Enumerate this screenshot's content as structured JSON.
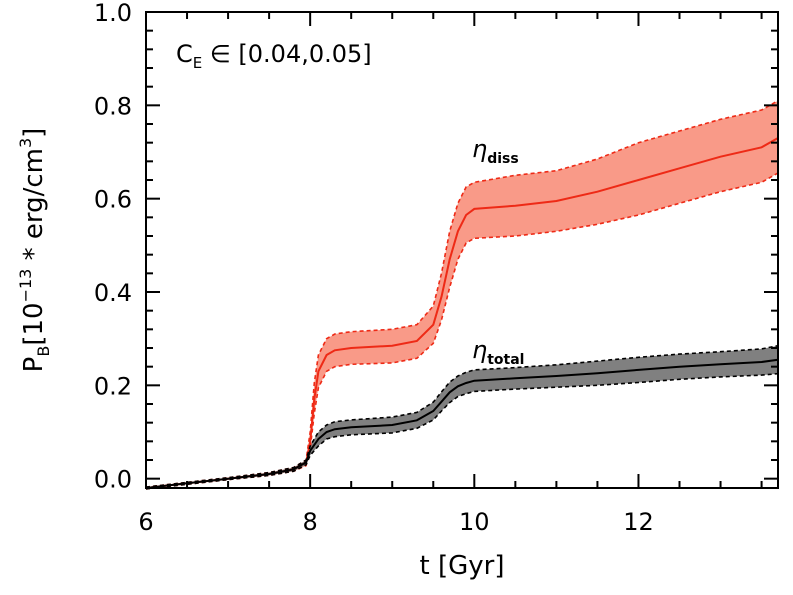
{
  "chart_data": {
    "type": "area",
    "xlabel": "t [Gyr]",
    "ylabel": "P_B [10^-13 * erg/cm^3]",
    "ylabel_parts": {
      "sym": "P",
      "sub": "B",
      "open": "[10",
      "exp": "−13",
      "mid": " * erg/cm",
      "exp2": "3",
      "close": "]"
    },
    "xlabel_parts": {
      "text": "t [Gyr]"
    },
    "xlim": [
      6,
      13.7
    ],
    "ylim": [
      -0.02,
      1.0
    ],
    "xticks": [
      6,
      8,
      10,
      12
    ],
    "xtick_labels": [
      "6",
      "8",
      "10",
      "12"
    ],
    "yticks": [
      0.0,
      0.2,
      0.4,
      0.6,
      0.8,
      1.0
    ],
    "ytick_labels": [
      "0.0",
      "0.2",
      "0.4",
      "0.6",
      "0.8",
      "1.0"
    ],
    "annotation": {
      "text": "C_E ∈ [0.04,0.05]",
      "sym": "C",
      "sub": "E",
      "rest": " ∈ [0.04,0.05]"
    },
    "series": [
      {
        "name": "η_diss",
        "label_sym": "η",
        "label_sub": "diss",
        "color": "#ee2a16",
        "fill": "#f99a88",
        "x": [
          6.0,
          6.5,
          7.0,
          7.5,
          7.8,
          7.95,
          8.0,
          8.05,
          8.1,
          8.2,
          8.3,
          8.5,
          9.0,
          9.3,
          9.5,
          9.6,
          9.7,
          9.8,
          9.9,
          10.0,
          10.5,
          11.0,
          11.5,
          12.0,
          12.5,
          13.0,
          13.5,
          13.7
        ],
        "y": [
          -0.02,
          -0.01,
          0.0,
          0.01,
          0.02,
          0.035,
          0.08,
          0.17,
          0.23,
          0.265,
          0.275,
          0.28,
          0.285,
          0.295,
          0.33,
          0.39,
          0.47,
          0.53,
          0.565,
          0.578,
          0.585,
          0.595,
          0.615,
          0.64,
          0.665,
          0.69,
          0.71,
          0.73
        ],
        "upper": [
          -0.018,
          -0.008,
          0.002,
          0.013,
          0.024,
          0.04,
          0.1,
          0.205,
          0.265,
          0.3,
          0.31,
          0.315,
          0.32,
          0.33,
          0.37,
          0.44,
          0.53,
          0.59,
          0.625,
          0.635,
          0.65,
          0.66,
          0.685,
          0.72,
          0.745,
          0.77,
          0.79,
          0.81
        ],
        "lower": [
          -0.022,
          -0.012,
          -0.002,
          0.007,
          0.016,
          0.028,
          0.065,
          0.14,
          0.195,
          0.23,
          0.24,
          0.245,
          0.248,
          0.258,
          0.29,
          0.34,
          0.41,
          0.47,
          0.505,
          0.515,
          0.52,
          0.53,
          0.545,
          0.565,
          0.59,
          0.615,
          0.635,
          0.655
        ]
      },
      {
        "name": "η_total",
        "label_sym": "η",
        "label_sub": "total",
        "color": "#000000",
        "fill": "#808080",
        "x": [
          6.0,
          6.5,
          7.0,
          7.5,
          7.8,
          7.95,
          8.0,
          8.1,
          8.2,
          8.3,
          8.5,
          9.0,
          9.3,
          9.5,
          9.6,
          9.7,
          9.8,
          9.9,
          10.0,
          10.5,
          11.0,
          11.5,
          12.0,
          12.5,
          13.0,
          13.5,
          13.7
        ],
        "y": [
          -0.02,
          -0.01,
          0.0,
          0.01,
          0.02,
          0.035,
          0.06,
          0.085,
          0.1,
          0.106,
          0.11,
          0.115,
          0.125,
          0.145,
          0.165,
          0.185,
          0.198,
          0.205,
          0.21,
          0.215,
          0.22,
          0.226,
          0.233,
          0.24,
          0.245,
          0.25,
          0.255
        ],
        "upper": [
          -0.018,
          -0.008,
          0.002,
          0.013,
          0.024,
          0.04,
          0.07,
          0.1,
          0.115,
          0.122,
          0.126,
          0.132,
          0.142,
          0.164,
          0.186,
          0.207,
          0.22,
          0.228,
          0.233,
          0.238,
          0.244,
          0.252,
          0.26,
          0.267,
          0.272,
          0.278,
          0.285
        ],
        "lower": [
          -0.022,
          -0.012,
          -0.002,
          0.007,
          0.016,
          0.03,
          0.05,
          0.07,
          0.085,
          0.09,
          0.094,
          0.098,
          0.108,
          0.126,
          0.145,
          0.163,
          0.176,
          0.182,
          0.187,
          0.192,
          0.196,
          0.2,
          0.206,
          0.213,
          0.218,
          0.222,
          0.225
        ]
      }
    ]
  }
}
